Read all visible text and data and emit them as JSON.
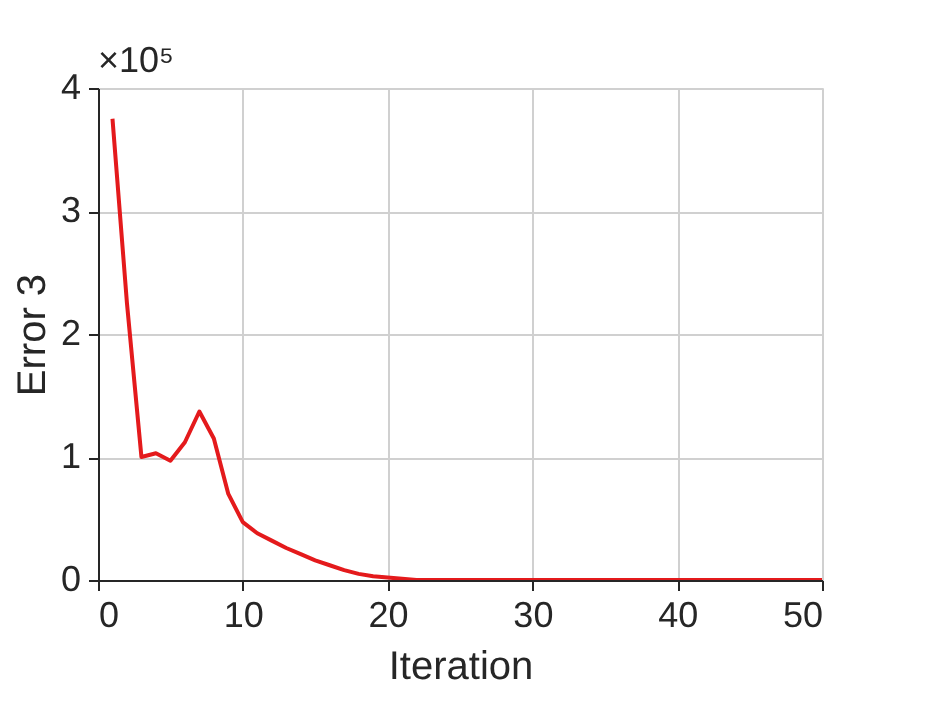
{
  "chart_data": {
    "type": "line",
    "xlabel": "Iteration",
    "ylabel": "Error 3",
    "annotations": [
      "×10⁵"
    ],
    "x": [
      1,
      2,
      3,
      4,
      5,
      6,
      7,
      8,
      9,
      10,
      11,
      12,
      13,
      14,
      15,
      16,
      17,
      18,
      19,
      20,
      21,
      22,
      23,
      24,
      25,
      30,
      35,
      40,
      45,
      50
    ],
    "series": [
      {
        "color": "#e41a1c",
        "values": [
          3.75,
          2.25,
          1.0,
          1.03,
          0.97,
          1.12,
          1.37,
          1.15,
          0.7,
          0.47,
          0.38,
          0.32,
          0.26,
          0.21,
          0.16,
          0.12,
          0.08,
          0.05,
          0.03,
          0.02,
          0.01,
          0,
          0,
          0,
          0,
          0,
          0,
          0,
          0,
          0
        ]
      }
    ],
    "xlim": [
      0,
      50
    ],
    "xticks": [
      0,
      10,
      20,
      30,
      40,
      50
    ],
    "ylim": [
      0,
      4
    ],
    "yticks": [
      0,
      1,
      2,
      3,
      4
    ],
    "grid": true,
    "marker": "none",
    "line_style": "solid"
  }
}
